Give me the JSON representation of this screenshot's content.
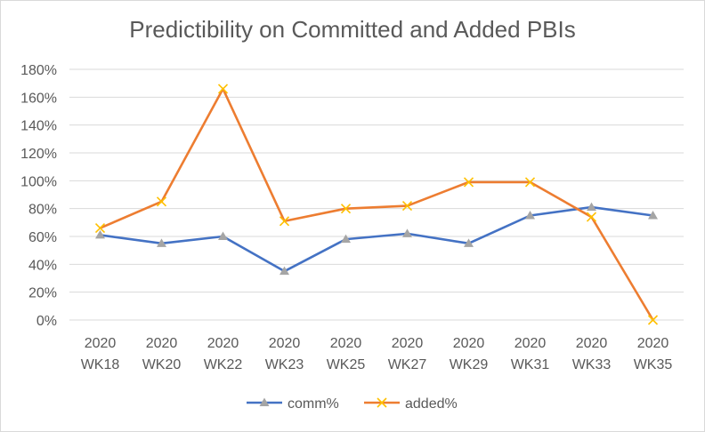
{
  "chart_data": {
    "type": "line",
    "title": "Predictibility on Committed and Added PBIs",
    "categories": [
      [
        "2020",
        "WK18"
      ],
      [
        "2020",
        "WK20"
      ],
      [
        "2020",
        "WK22"
      ],
      [
        "2020",
        "WK23"
      ],
      [
        "2020",
        "WK25"
      ],
      [
        "2020",
        "WK27"
      ],
      [
        "2020",
        "WK29"
      ],
      [
        "2020",
        "WK31"
      ],
      [
        "2020",
        "WK33"
      ],
      [
        "2020",
        "WK35"
      ]
    ],
    "ylim": [
      0,
      180
    ],
    "yticks": [
      0,
      20,
      40,
      60,
      80,
      100,
      120,
      140,
      160,
      180
    ],
    "ytick_suffix": "%",
    "grid": true,
    "legend_position": "bottom",
    "series": [
      {
        "name": "comm%",
        "color": "#4472c4",
        "marker": "triangle",
        "values": [
          61,
          55,
          60,
          35,
          58,
          62,
          55,
          75,
          81,
          75
        ]
      },
      {
        "name": "added%",
        "color": "#ed7d31",
        "marker": "x",
        "values": [
          66,
          85,
          166,
          71,
          80,
          82,
          99,
          99,
          74,
          0
        ]
      }
    ]
  }
}
